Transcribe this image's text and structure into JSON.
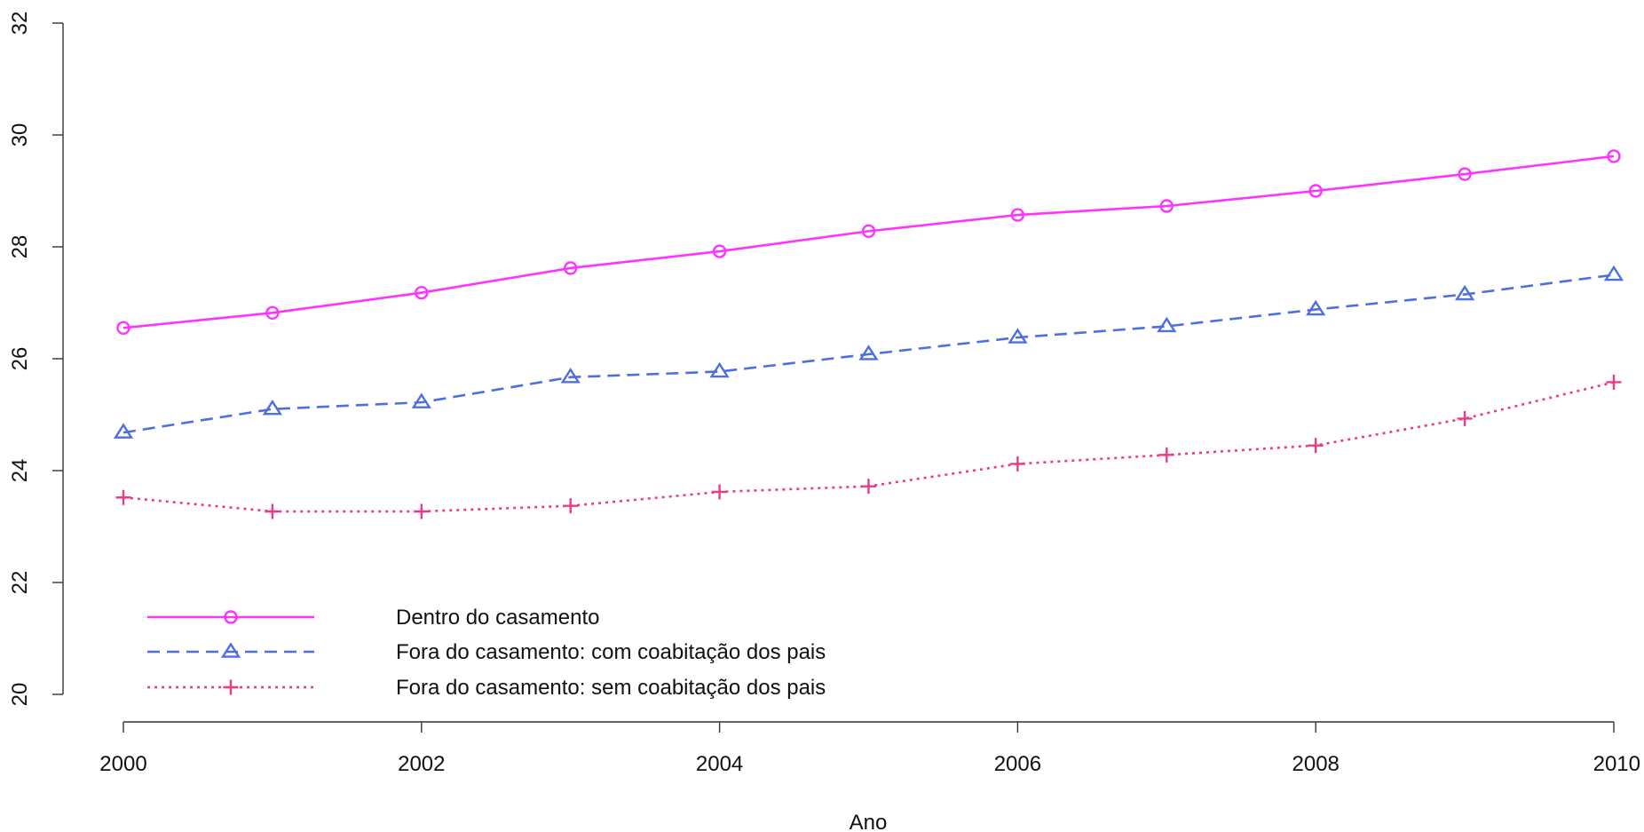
{
  "chart_data": {
    "type": "line",
    "title": "",
    "xlabel": "Ano",
    "ylabel": "",
    "xlim": [
      2000,
      2010
    ],
    "ylim": [
      20,
      32
    ],
    "x_ticks": [
      2000,
      2002,
      2004,
      2006,
      2008,
      2010
    ],
    "y_ticks": [
      20,
      22,
      24,
      26,
      28,
      30,
      32
    ],
    "x": [
      2000,
      2001,
      2002,
      2003,
      2004,
      2005,
      2006,
      2007,
      2008,
      2009,
      2010
    ],
    "grid": false,
    "legend_position": "bottom-left",
    "series": [
      {
        "name": "Dentro do casamento",
        "values": [
          26.55,
          26.82,
          27.18,
          27.62,
          27.92,
          28.28,
          28.57,
          28.73,
          29.0,
          29.3,
          29.62
        ],
        "color": "#ff33ff",
        "line_style": "solid",
        "marker": "circle"
      },
      {
        "name": "Fora do casamento: com coabitação dos pais",
        "values": [
          24.68,
          25.1,
          25.22,
          25.67,
          25.77,
          26.08,
          26.38,
          26.58,
          26.88,
          27.15,
          27.5
        ],
        "color": "#4f6fe0",
        "line_style": "dashed",
        "marker": "triangle"
      },
      {
        "name": "Fora do casamento: sem coabitação dos pais",
        "values": [
          23.52,
          23.27,
          23.27,
          23.37,
          23.62,
          23.72,
          24.12,
          24.28,
          24.45,
          24.93,
          25.58
        ],
        "color": "#ee3a86",
        "line_style": "dotted",
        "marker": "plus"
      }
    ]
  }
}
